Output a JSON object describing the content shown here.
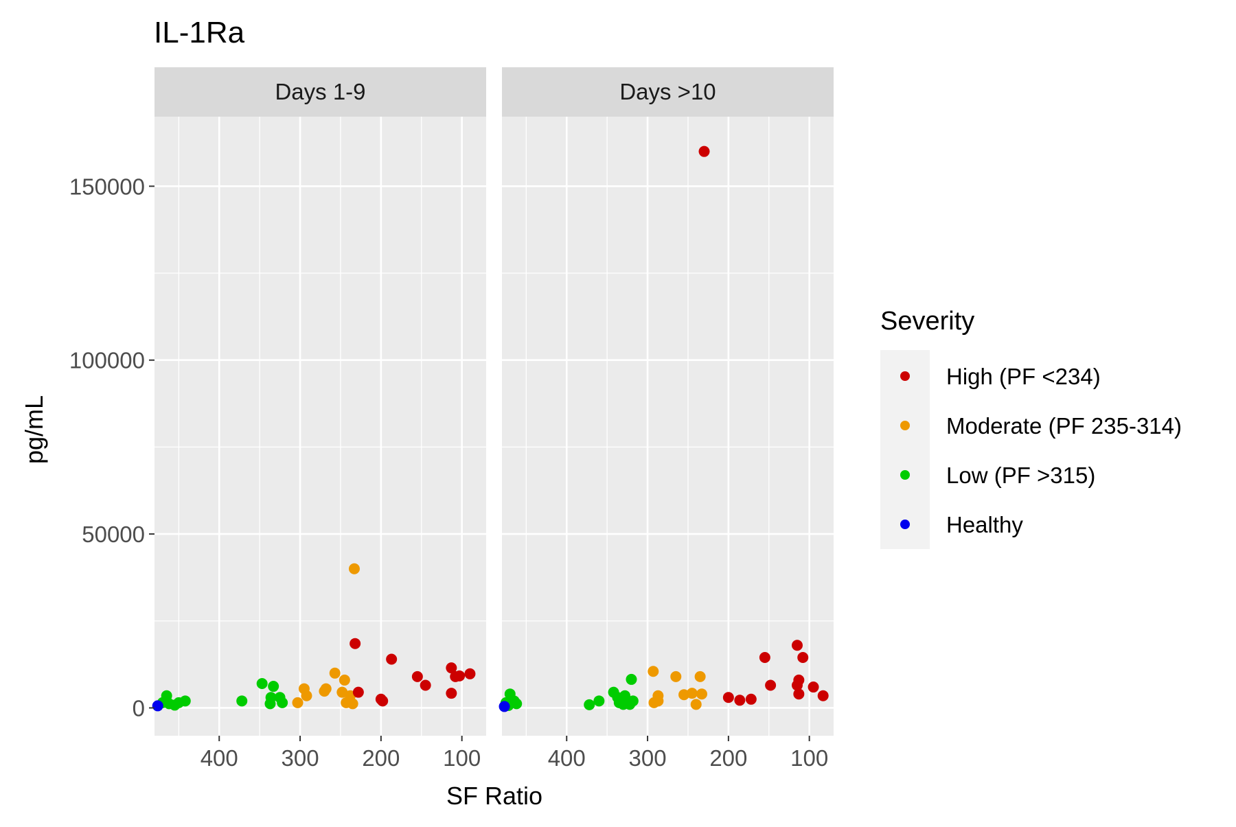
{
  "chart_data": {
    "type": "scatter",
    "title": "IL-1Ra",
    "xlabel": "SF Ratio",
    "ylabel": "pg/mL",
    "x_reversed": true,
    "xlim": [
      480,
      70
    ],
    "ylim": [
      -8000,
      170000
    ],
    "x_ticks": [
      400,
      300,
      200,
      100
    ],
    "y_ticks": [
      0,
      50000,
      100000,
      150000
    ],
    "grid": true,
    "legend": {
      "title": "Severity",
      "placement": "right",
      "entries": [
        {
          "key": "high",
          "label": "High (PF <234)",
          "color": "#cc0000"
        },
        {
          "key": "moderate",
          "label": "Moderate (PF 235-314)",
          "color": "#ee9900"
        },
        {
          "key": "low",
          "label": "Low (PF >315)",
          "color": "#00cc00"
        },
        {
          "key": "healthy",
          "label": "Healthy",
          "color": "#0000ee"
        }
      ]
    },
    "panels": [
      {
        "name": "Days 1-9",
        "points": {
          "high": [
            [
              232,
              18500
            ],
            [
              187,
              14000
            ],
            [
              198,
              2000
            ],
            [
              200,
              2500
            ],
            [
              228,
              4500
            ],
            [
              155,
              9000
            ],
            [
              145,
              6500
            ],
            [
              113,
              11500
            ],
            [
              108,
              9000
            ],
            [
              103,
              9200
            ],
            [
              90,
              9800
            ],
            [
              113,
              4200
            ]
          ],
          "moderate": [
            [
              233,
              40000
            ],
            [
              257,
              10000
            ],
            [
              245,
              8000
            ],
            [
              268,
              5500
            ],
            [
              270,
              4800
            ],
            [
              295,
              5500
            ],
            [
              292,
              3500
            ],
            [
              303,
              1500
            ],
            [
              248,
              4500
            ],
            [
              243,
              1500
            ],
            [
              238,
              3500
            ],
            [
              235,
              1200
            ]
          ],
          "low": [
            [
              465,
              3500
            ],
            [
              470,
              1500
            ],
            [
              462,
              1200
            ],
            [
              455,
              800
            ],
            [
              450,
              1500
            ],
            [
              442,
              2000
            ],
            [
              372,
              2000
            ],
            [
              347,
              7000
            ],
            [
              336,
              3000
            ],
            [
              337,
              1200
            ],
            [
              333,
              6200
            ],
            [
              325,
              3000
            ],
            [
              322,
              1500
            ]
          ],
          "healthy": [
            [
              476,
              600
            ]
          ]
        }
      },
      {
        "name": "Days >10",
        "points": {
          "high": [
            [
              230,
              160000
            ],
            [
              200,
              3000
            ],
            [
              186,
              2200
            ],
            [
              172,
              2500
            ],
            [
              155,
              14500
            ],
            [
              148,
              6500
            ],
            [
              115,
              18000
            ],
            [
              113,
              8000
            ],
            [
              115,
              6500
            ],
            [
              113,
              4000
            ],
            [
              108,
              14500
            ],
            [
              95,
              6000
            ],
            [
              83,
              3500
            ]
          ],
          "moderate": [
            [
              293,
              10500
            ],
            [
              287,
              3500
            ],
            [
              287,
              2000
            ],
            [
              265,
              9000
            ],
            [
              255,
              3800
            ],
            [
              245,
              4200
            ],
            [
              240,
              1000
            ],
            [
              235,
              9000
            ],
            [
              233,
              4000
            ],
            [
              292,
              1500
            ]
          ],
          "low": [
            [
              470,
              4000
            ],
            [
              465,
              2000
            ],
            [
              462,
              1200
            ],
            [
              372,
              900
            ],
            [
              360,
              2000
            ],
            [
              342,
              4500
            ],
            [
              337,
              3000
            ],
            [
              335,
              1500
            ],
            [
              330,
              1000
            ],
            [
              328,
              3500
            ],
            [
              320,
              8200
            ],
            [
              318,
              2000
            ],
            [
              322,
              1000
            ],
            [
              472,
              700
            ],
            [
              475,
              1500
            ]
          ],
          "healthy": [
            [
              477,
              400
            ]
          ]
        }
      }
    ]
  }
}
